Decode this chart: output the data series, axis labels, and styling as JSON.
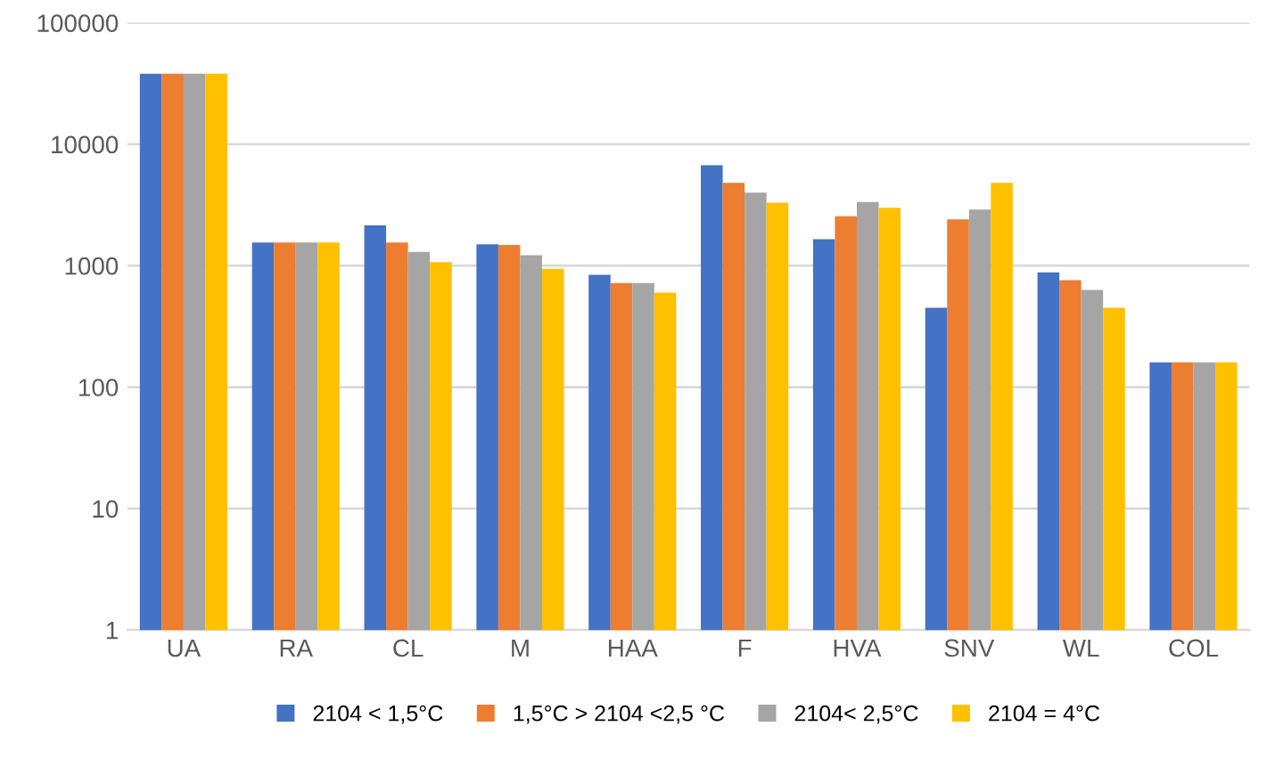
{
  "chart_data": {
    "type": "bar",
    "log": "y",
    "categories": [
      "UA",
      "RA",
      "CL",
      "M",
      "HAA",
      "F",
      "HVA",
      "SNV",
      "WL",
      "COL"
    ],
    "series": [
      {
        "name": "2104 < 1,5°C",
        "color": "#4472c4",
        "values": [
          38000,
          1550,
          2150,
          1500,
          840,
          6700,
          1650,
          450,
          880,
          160
        ]
      },
      {
        "name": "1,5°C > 2104 <2,5 °C",
        "color": "#ed7d31",
        "values": [
          38000,
          1550,
          1550,
          1480,
          720,
          4800,
          2550,
          2400,
          760,
          160
        ]
      },
      {
        "name": "2104< 2,5°C",
        "color": "#a5a5a5",
        "values": [
          38000,
          1550,
          1300,
          1220,
          720,
          4000,
          3350,
          2900,
          630,
          160
        ]
      },
      {
        "name": "2104 = 4°C",
        "color": "#ffc000",
        "values": [
          38000,
          1550,
          1070,
          940,
          600,
          3300,
          3000,
          4800,
          450,
          160
        ]
      }
    ],
    "ylim": [
      1,
      100000
    ],
    "yticks": [
      1,
      10,
      100,
      1000,
      10000,
      100000
    ],
    "grid": "y",
    "legend": "bottom"
  }
}
